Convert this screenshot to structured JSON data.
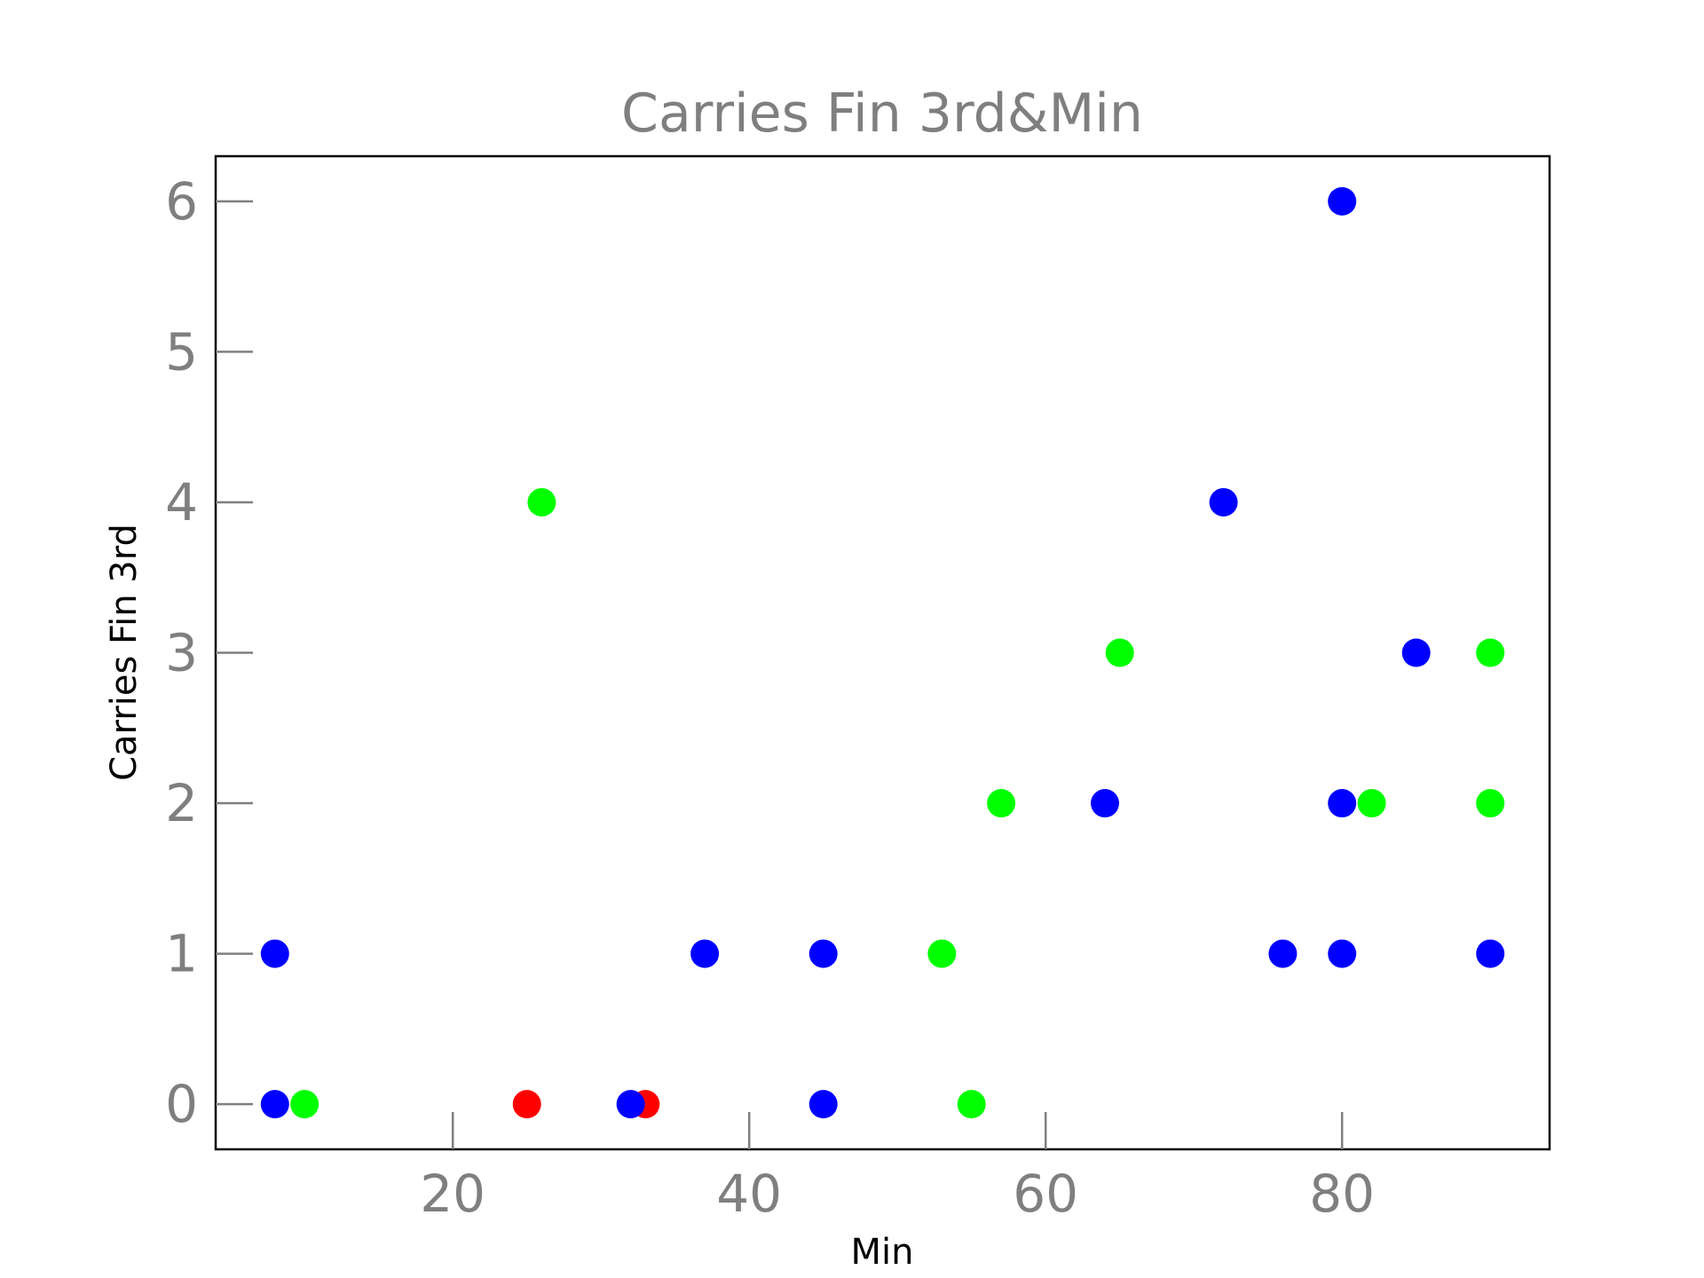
{
  "chart_data": {
    "type": "scatter",
    "title": "Carries Fin 3rd&Min",
    "xlabel": "Min",
    "ylabel": "Carries Fin 3rd",
    "xlim": [
      4,
      94
    ],
    "ylim": [
      -0.3,
      6.3
    ],
    "xticks": [
      20,
      40,
      60,
      80
    ],
    "yticks": [
      0,
      1,
      2,
      3,
      4,
      5,
      6
    ],
    "grid": false,
    "colors": {
      "blue": "#0000ff",
      "green": "#00ff00",
      "red": "#ff0000"
    },
    "points": [
      {
        "x": 8,
        "y": 1,
        "color": "#0000ff"
      },
      {
        "x": 8,
        "y": 0,
        "color": "#0000ff"
      },
      {
        "x": 10,
        "y": 0,
        "color": "#00ff00"
      },
      {
        "x": 25,
        "y": 0,
        "color": "#ff0000"
      },
      {
        "x": 26,
        "y": 4,
        "color": "#00ff00"
      },
      {
        "x": 33,
        "y": 0,
        "color": "#ff0000"
      },
      {
        "x": 32,
        "y": 0,
        "color": "#0000ff"
      },
      {
        "x": 37,
        "y": 1,
        "color": "#0000ff"
      },
      {
        "x": 45,
        "y": 1,
        "color": "#0000ff"
      },
      {
        "x": 45,
        "y": 0,
        "color": "#0000ff"
      },
      {
        "x": 53,
        "y": 1,
        "color": "#00ff00"
      },
      {
        "x": 55,
        "y": 0,
        "color": "#00ff00"
      },
      {
        "x": 57,
        "y": 2,
        "color": "#00ff00"
      },
      {
        "x": 64,
        "y": 2,
        "color": "#0000ff"
      },
      {
        "x": 65,
        "y": 3,
        "color": "#00ff00"
      },
      {
        "x": 72,
        "y": 4,
        "color": "#0000ff"
      },
      {
        "x": 76,
        "y": 1,
        "color": "#0000ff"
      },
      {
        "x": 80,
        "y": 6,
        "color": "#0000ff"
      },
      {
        "x": 80,
        "y": 2,
        "color": "#0000ff"
      },
      {
        "x": 80,
        "y": 1,
        "color": "#0000ff"
      },
      {
        "x": 82,
        "y": 2,
        "color": "#00ff00"
      },
      {
        "x": 85,
        "y": 3,
        "color": "#0000ff"
      },
      {
        "x": 90,
        "y": 3,
        "color": "#00ff00"
      },
      {
        "x": 90,
        "y": 2,
        "color": "#00ff00"
      },
      {
        "x": 90,
        "y": 1,
        "color": "#0000ff"
      }
    ]
  }
}
